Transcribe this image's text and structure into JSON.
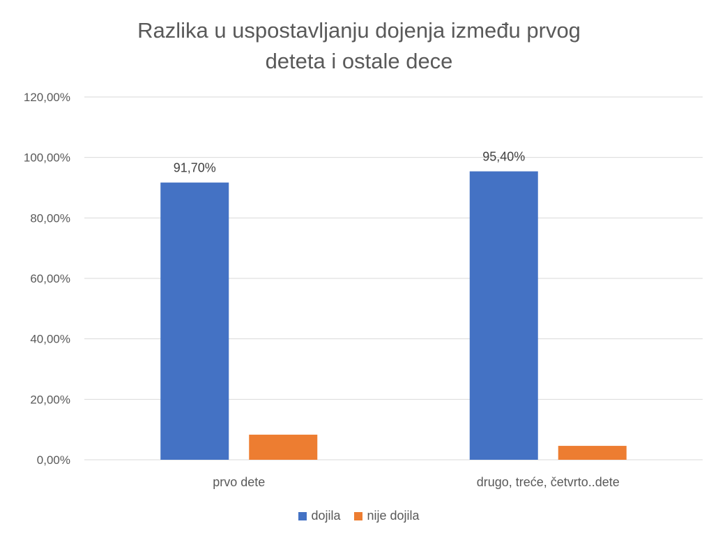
{
  "chart_data": {
    "type": "bar",
    "title_lines": [
      "Razlika u uspostavljanju dojenja između prvog",
      "deteta i ostale dece"
    ],
    "categories": [
      "prvo dete",
      "drugo, treće, četvrto..dete"
    ],
    "series": [
      {
        "name": "dojila",
        "values": [
          91.7,
          95.4
        ],
        "data_labels": [
          "91,70%",
          "95,40%"
        ],
        "color": "#4472C4"
      },
      {
        "name": "nije dojila",
        "values": [
          8.3,
          4.6
        ],
        "data_labels": [
          null,
          null
        ],
        "color": "#ED7D31"
      }
    ],
    "ylim": [
      0,
      120
    ],
    "y_ticks": [
      0,
      20,
      40,
      60,
      80,
      100,
      120
    ],
    "y_tick_labels": [
      "0,00%",
      "20,00%",
      "40,00%",
      "60,00%",
      "80,00%",
      "100,00%",
      "120,00%"
    ],
    "grid": true,
    "legend_position": "bottom",
    "gridline_color": "#D9D9D9"
  }
}
